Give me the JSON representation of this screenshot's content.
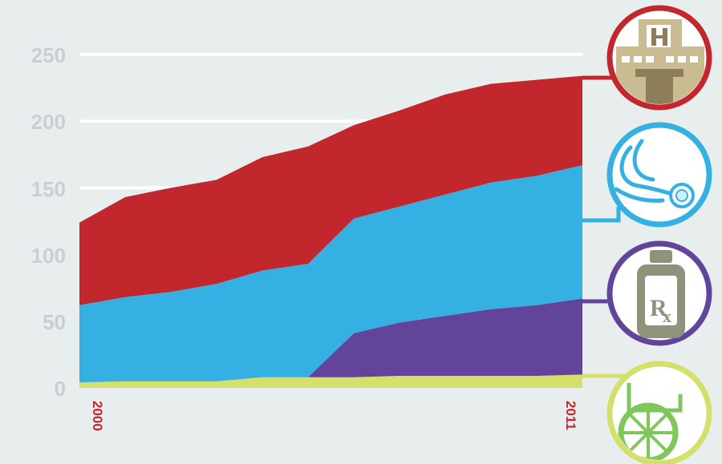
{
  "chart_data": {
    "type": "area",
    "stacked": true,
    "x": [
      2000,
      2001,
      2002,
      2003,
      2004,
      2005,
      2006,
      2007,
      2008,
      2009,
      2010,
      2011
    ],
    "series": [
      {
        "icon": "wheelchair-icon",
        "color": "#d5e06a",
        "values": [
          4,
          5,
          5,
          5,
          8,
          8,
          8,
          9,
          9,
          9,
          9,
          10
        ]
      },
      {
        "icon": "prescription-bottle-icon",
        "color": "#62459a",
        "values": [
          0,
          0,
          0,
          0,
          0,
          0,
          33,
          40,
          45,
          50,
          53,
          57
        ]
      },
      {
        "icon": "stethoscope-icon",
        "color": "#35b0e3",
        "values": [
          58,
          63,
          67,
          73,
          80,
          85,
          86,
          87,
          91,
          95,
          97,
          100
        ]
      },
      {
        "icon": "hospital-icon",
        "color": "#c1272d",
        "values": [
          62,
          75,
          78,
          78,
          85,
          88,
          70,
          72,
          75,
          74,
          72,
          67
        ]
      }
    ],
    "y_ticks": [
      "0",
      "50",
      "100",
      "150",
      "200",
      "250"
    ],
    "ylim": [
      0,
      250
    ],
    "x_labels": [
      {
        "text": "2000",
        "at": 2000
      },
      {
        "text": "2011",
        "at": 2011
      }
    ],
    "label_color": "#c1272d",
    "grid": true
  }
}
